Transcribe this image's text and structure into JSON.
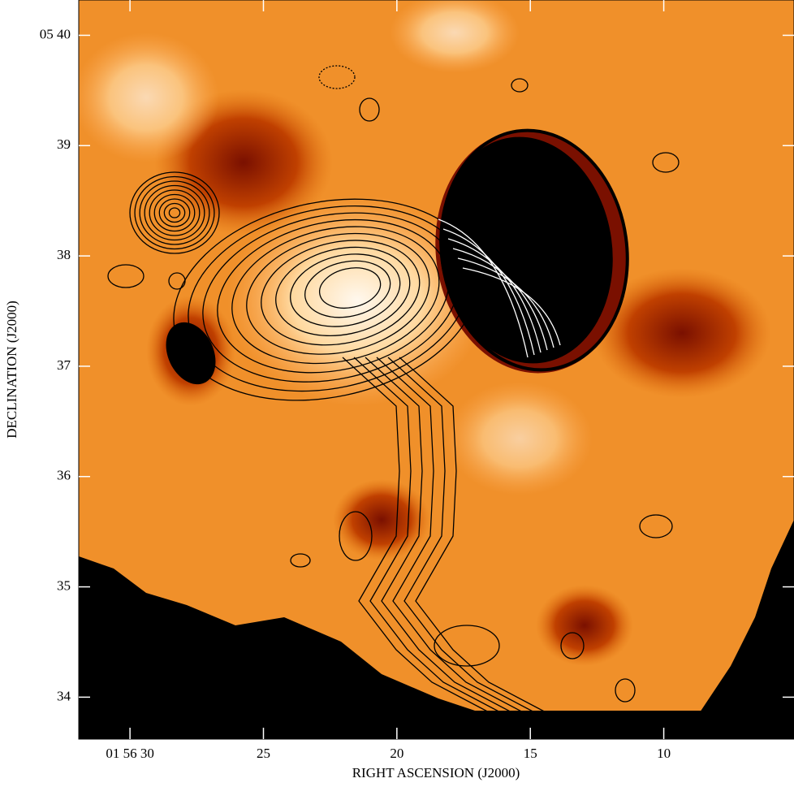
{
  "chart_data": {
    "type": "image",
    "xlabel": "RIGHT ASCENSION (J2000)",
    "ylabel": "DECLINATION (J2000)",
    "xlim": [
      31.92,
      5.12
    ],
    "ylim": [
      33.62,
      40.32
    ],
    "xticks": [
      {
        "value": 30,
        "label": "01 56 30"
      },
      25,
      20,
      15,
      10
    ],
    "yticks": [
      {
        "value": 40,
        "label": "05 40"
      },
      39,
      38,
      37,
      36,
      35,
      34
    ]
  }
}
